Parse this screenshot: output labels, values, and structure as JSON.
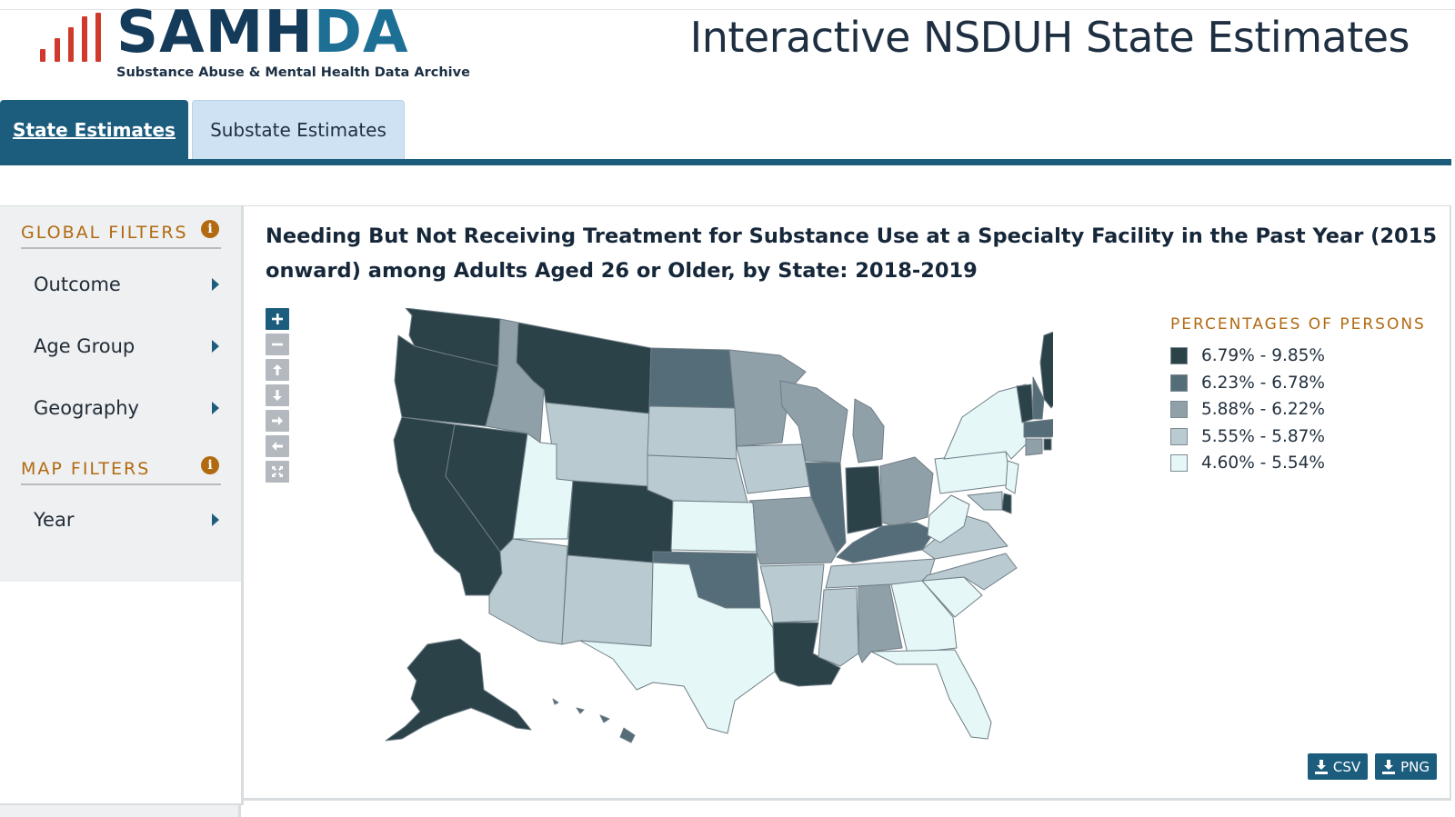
{
  "brand": {
    "logo_word_a": "SAMH",
    "logo_word_b": "DA",
    "logo_subtitle": "Substance Abuse & Mental Health Data Archive"
  },
  "header": {
    "app_title": "Interactive NSDUH State Estimates"
  },
  "tabs": [
    {
      "label": "State Estimates",
      "active": true
    },
    {
      "label": "Substate Estimates",
      "active": false
    }
  ],
  "sidebar": {
    "global_filters_label": "GLOBAL FILTERS",
    "global_items": [
      "Outcome",
      "Age Group",
      "Geography"
    ],
    "map_filters_label": "MAP FILTERS",
    "map_items": [
      "Year"
    ],
    "info_glyph": "i"
  },
  "map": {
    "title": "Needing But Not Receiving Treatment for Substance Use at a Specialty Facility in the Past Year (2015 onward) among Adults Aged 26 or Older, by State: 2018-2019",
    "zoom_controls": [
      "zoom-in-icon",
      "zoom-out-icon",
      "pan-up-icon",
      "pan-down-icon",
      "pan-right-icon",
      "pan-left-icon",
      "fit-extent-icon"
    ]
  },
  "legend": {
    "title": "PERCENTAGES OF PERSONS",
    "items": [
      {
        "label": "6.79% - 9.85%",
        "color": "#2b4249"
      },
      {
        "label": "6.23% - 6.78%",
        "color": "#546d78"
      },
      {
        "label": "5.88% - 6.22%",
        "color": "#8fa0a8"
      },
      {
        "label": "5.55% - 5.87%",
        "color": "#b9cbd0"
      },
      {
        "label": "4.60% - 5.54%",
        "color": "#e6f7f8"
      }
    ]
  },
  "downloads": {
    "csv_label": "CSV",
    "png_label": "PNG"
  },
  "colors": {
    "accent": "#1c5d7e",
    "filter_heading": "#b26a12",
    "tab_inactive": "#cfe2f3"
  }
}
